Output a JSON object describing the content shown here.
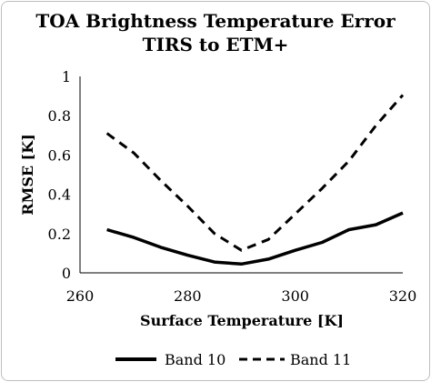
{
  "chart_data": {
    "type": "line",
    "title": "TOA Brightness Temperature Error",
    "subtitle": "TIRS to ETM+",
    "xlabel": "Surface Temperature [K]",
    "ylabel": "RMSE [K]",
    "xlim": [
      260,
      320
    ],
    "ylim": [
      0,
      1
    ],
    "xticks": [
      "260",
      "280",
      "300",
      "320"
    ],
    "yticks": [
      "0",
      "0.2",
      "0.4",
      "0.6",
      "0.8",
      "1"
    ],
    "grid": false,
    "legend_position": "bottom",
    "series": [
      {
        "name": "Band 10",
        "line_style": "solid",
        "color": "#000000",
        "x": [
          265,
          270,
          275,
          280,
          285,
          290,
          295,
          300,
          305,
          310,
          315,
          320
        ],
        "y": [
          0.22,
          0.18,
          0.13,
          0.09,
          0.055,
          0.045,
          0.07,
          0.115,
          0.155,
          0.22,
          0.245,
          0.305
        ]
      },
      {
        "name": "Band 11",
        "line_style": "dashed",
        "color": "#000000",
        "x": [
          265,
          270,
          275,
          280,
          285,
          290,
          295,
          300,
          305,
          310,
          315,
          320
        ],
        "y": [
          0.71,
          0.61,
          0.47,
          0.34,
          0.2,
          0.115,
          0.17,
          0.3,
          0.43,
          0.57,
          0.75,
          0.905
        ]
      }
    ]
  }
}
